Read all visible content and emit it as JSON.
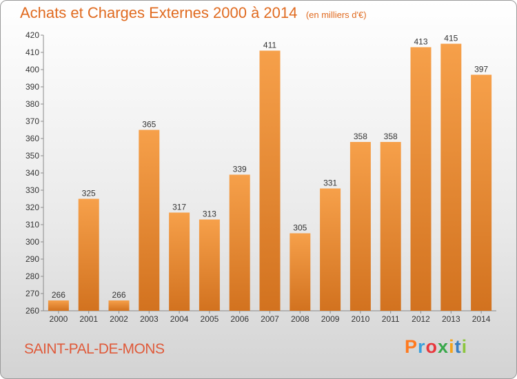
{
  "chart_data": {
    "type": "bar",
    "title": "Achats et Charges Externes 2000 à 2014",
    "subtitle": "(en milliers d'€)",
    "categories": [
      "2000",
      "2001",
      "2002",
      "2003",
      "2004",
      "2005",
      "2006",
      "2007",
      "2008",
      "2009",
      "2010",
      "2011",
      "2012",
      "2013",
      "2014"
    ],
    "values": [
      266,
      325,
      266,
      365,
      317,
      313,
      339,
      411,
      305,
      331,
      358,
      358,
      413,
      415,
      397
    ],
    "ylim": [
      260,
      420
    ],
    "yticks": [
      260,
      270,
      280,
      290,
      300,
      310,
      320,
      330,
      340,
      350,
      360,
      370,
      380,
      390,
      400,
      410,
      420
    ],
    "xlabel": "",
    "ylabel": "",
    "grid": false,
    "bar_color": "#f08d2e"
  },
  "footer": {
    "commune": "SAINT-PAL-DE-MONS",
    "brand": "Proxiti"
  }
}
